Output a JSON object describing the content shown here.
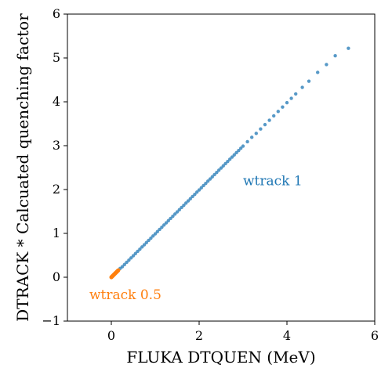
{
  "chart_data": {
    "type": "scatter",
    "title": "",
    "xlabel": "FLUKA DTQUEN (MeV)",
    "ylabel": "DTRACK * Calcuated quenching factor",
    "xlim": [
      -1,
      6
    ],
    "ylim": [
      -1,
      6
    ],
    "x_ticks": [
      "0",
      "2",
      "4",
      "6"
    ],
    "y_ticks": [
      "−1",
      "0",
      "1",
      "2",
      "3",
      "4",
      "5",
      "6"
    ],
    "grid": false,
    "legend": "none",
    "series": [
      {
        "name": "wtrack 1",
        "color": "#1f77b4",
        "x": [
          0.05,
          0.1,
          0.15,
          0.2,
          0.25,
          0.3,
          0.35,
          0.4,
          0.45,
          0.5,
          0.55,
          0.6,
          0.65,
          0.7,
          0.75,
          0.8,
          0.85,
          0.9,
          0.95,
          1.0,
          1.05,
          1.1,
          1.15,
          1.2,
          1.25,
          1.3,
          1.35,
          1.4,
          1.45,
          1.5,
          1.55,
          1.6,
          1.65,
          1.7,
          1.75,
          1.8,
          1.85,
          1.9,
          1.95,
          2.0,
          2.05,
          2.1,
          2.15,
          2.2,
          2.25,
          2.3,
          2.35,
          2.4,
          2.45,
          2.5,
          2.55,
          2.6,
          2.65,
          2.7,
          2.75,
          2.8,
          2.85,
          2.9,
          2.95,
          3.0,
          3.1,
          3.2,
          3.3,
          3.4,
          3.5,
          3.6,
          3.7,
          3.8,
          3.9,
          4.0,
          4.1,
          4.2,
          4.35,
          4.5,
          4.7,
          4.9,
          5.1,
          5.4
        ],
        "y": [
          0.05,
          0.1,
          0.15,
          0.2,
          0.24,
          0.29,
          0.34,
          0.39,
          0.44,
          0.49,
          0.54,
          0.59,
          0.64,
          0.69,
          0.74,
          0.79,
          0.84,
          0.89,
          0.94,
          0.99,
          1.04,
          1.09,
          1.14,
          1.19,
          1.24,
          1.29,
          1.34,
          1.39,
          1.44,
          1.49,
          1.54,
          1.59,
          1.64,
          1.69,
          1.74,
          1.79,
          1.84,
          1.89,
          1.94,
          1.99,
          2.04,
          2.09,
          2.14,
          2.19,
          2.24,
          2.29,
          2.34,
          2.39,
          2.44,
          2.49,
          2.54,
          2.59,
          2.64,
          2.69,
          2.74,
          2.79,
          2.84,
          2.89,
          2.94,
          2.99,
          3.09,
          3.19,
          3.28,
          3.38,
          3.48,
          3.58,
          3.68,
          3.78,
          3.88,
          3.98,
          4.08,
          4.18,
          4.33,
          4.47,
          4.67,
          4.85,
          5.05,
          5.22
        ]
      },
      {
        "name": "wtrack 0.5",
        "color": "#ff7f0e",
        "x": [
          0.0,
          0.01,
          0.02,
          0.03,
          0.04,
          0.05,
          0.06,
          0.07,
          0.08,
          0.09,
          0.1,
          0.11,
          0.12,
          0.13,
          0.14,
          0.15,
          0.16
        ],
        "y": [
          0.0,
          0.01,
          0.02,
          0.03,
          0.04,
          0.05,
          0.06,
          0.07,
          0.08,
          0.09,
          0.1,
          0.11,
          0.12,
          0.13,
          0.14,
          0.15,
          0.16
        ]
      }
    ],
    "annotations": [
      {
        "text": "wtrack 1",
        "x": 3.0,
        "y": 2.1,
        "color": "#1f77b4"
      },
      {
        "text": "wtrack 0.5",
        "x": -0.5,
        "y": -0.5,
        "color": "#ff7f0e"
      }
    ]
  }
}
